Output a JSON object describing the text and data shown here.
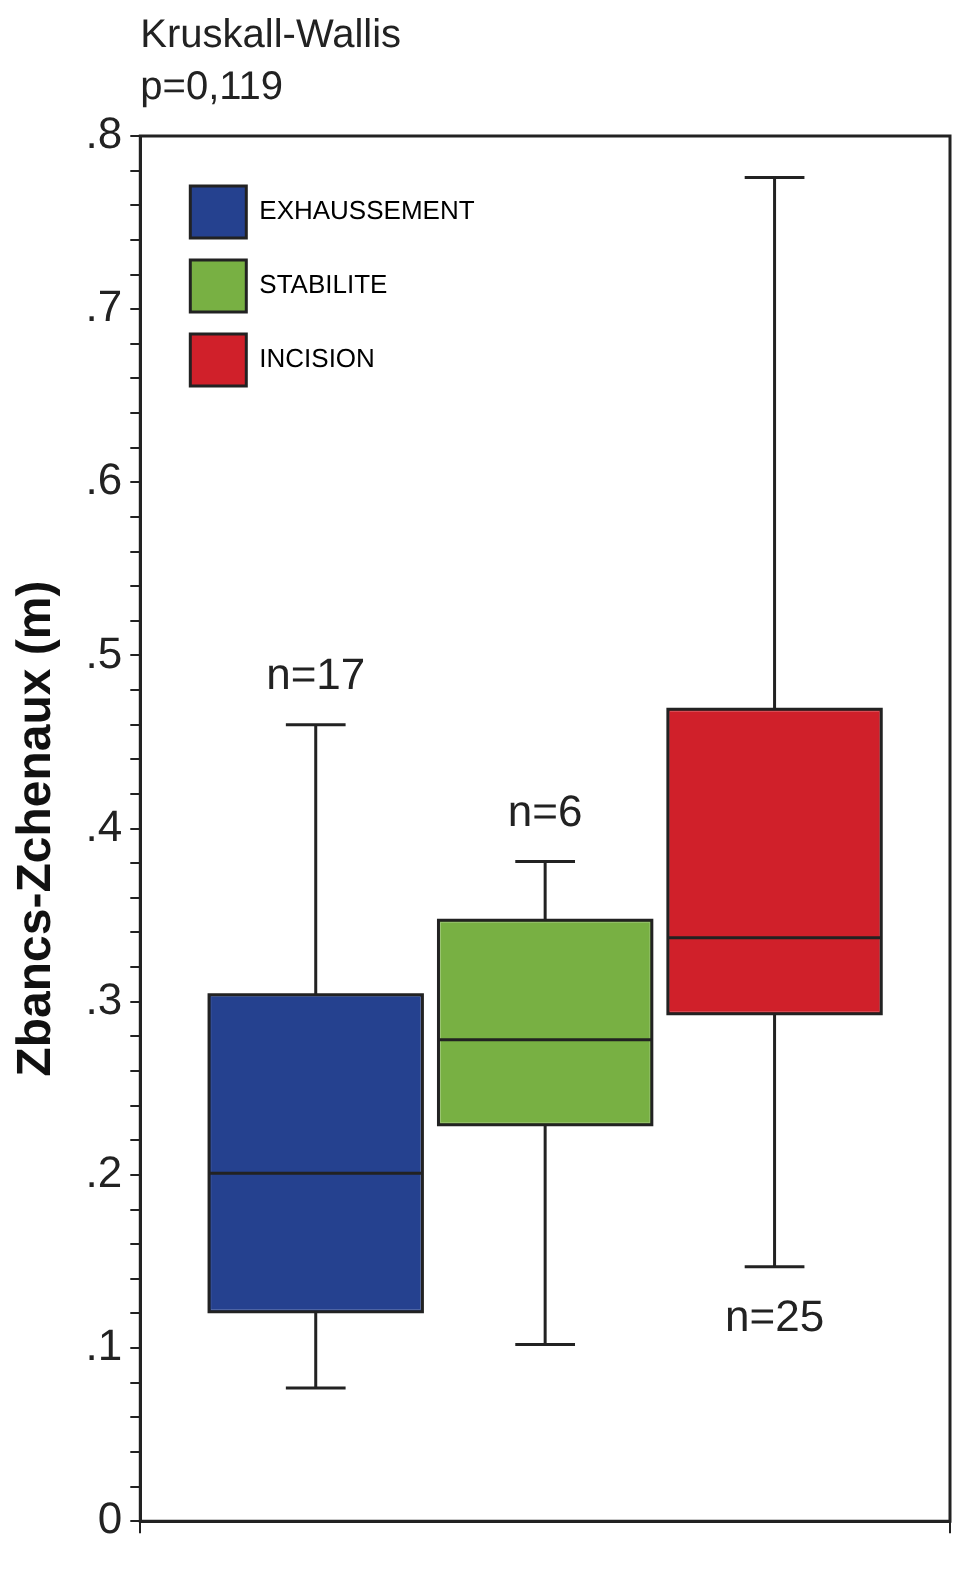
{
  "chart_data": {
    "type": "box",
    "title": "Kruskall-Wallis",
    "subtitle": "p=0,119",
    "ylabel": "Zbancs-Zchenaux (m)",
    "categories": [
      null
    ],
    "series": [
      {
        "name": "EXHAUSSEMENT",
        "color": "#25418f",
        "boxes": [
          {
            "low": 0.077,
            "q1": 0.121,
            "median": 0.201,
            "q3": 0.304,
            "high": 0.46
          }
        ]
      },
      {
        "name": "STABILITE",
        "color": "#78b043",
        "boxes": [
          {
            "low": 0.102,
            "q1": 0.229,
            "median": 0.278,
            "q3": 0.347,
            "high": 0.381
          }
        ]
      },
      {
        "name": "INCISION",
        "color": "#d0202a",
        "boxes": [
          {
            "low": 0.147,
            "q1": 0.293,
            "median": 0.337,
            "q3": 0.469,
            "high": 0.776
          }
        ]
      }
    ],
    "annotations": [
      "n=17",
      "n=6",
      "n=25"
    ],
    "ylim": [
      0,
      0.8
    ],
    "yticks": [
      0,
      {
        "value": 0.02,
        "label": null
      },
      {
        "value": 0.04,
        "label": null
      },
      {
        "value": 0.06,
        "label": null
      },
      {
        "value": 0.08,
        "label": null
      },
      {
        "value": 0.1,
        "label": ".1"
      },
      {
        "value": 0.12,
        "label": null
      },
      {
        "value": 0.14,
        "label": null
      },
      {
        "value": 0.16,
        "label": null
      },
      {
        "value": 0.18,
        "label": null
      },
      {
        "value": 0.2,
        "label": ".2"
      },
      {
        "value": 0.22,
        "label": null
      },
      {
        "value": 0.24,
        "label": null
      },
      {
        "value": 0.26,
        "label": null
      },
      {
        "value": 0.28,
        "label": null
      },
      {
        "value": 0.3,
        "label": ".3"
      },
      {
        "value": 0.32,
        "label": null
      },
      {
        "value": 0.34,
        "label": null
      },
      {
        "value": 0.36,
        "label": null
      },
      {
        "value": 0.38,
        "label": null
      },
      {
        "value": 0.4,
        "label": ".4"
      },
      {
        "value": 0.42,
        "label": null
      },
      {
        "value": 0.44,
        "label": null
      },
      {
        "value": 0.46,
        "label": null
      },
      {
        "value": 0.48,
        "label": null
      },
      {
        "value": 0.5,
        "label": ".5"
      },
      {
        "value": 0.52,
        "label": null
      },
      {
        "value": 0.54,
        "label": null
      },
      {
        "value": 0.56,
        "label": null
      },
      {
        "value": 0.58,
        "label": null
      },
      {
        "value": 0.6,
        "label": ".6"
      },
      {
        "value": 0.62,
        "label": null
      },
      {
        "value": 0.64,
        "label": null
      },
      {
        "value": 0.66,
        "label": null
      },
      {
        "value": 0.68,
        "label": null
      },
      {
        "value": 0.7,
        "label": ".7"
      },
      {
        "value": 0.72,
        "label": null
      },
      {
        "value": 0.74,
        "label": null
      },
      {
        "value": 0.76,
        "label": null
      },
      {
        "value": 0.78,
        "label": null
      },
      {
        "value": 0.8,
        "label": ".8"
      }
    ],
    "grid": false,
    "legend": "top left"
  }
}
